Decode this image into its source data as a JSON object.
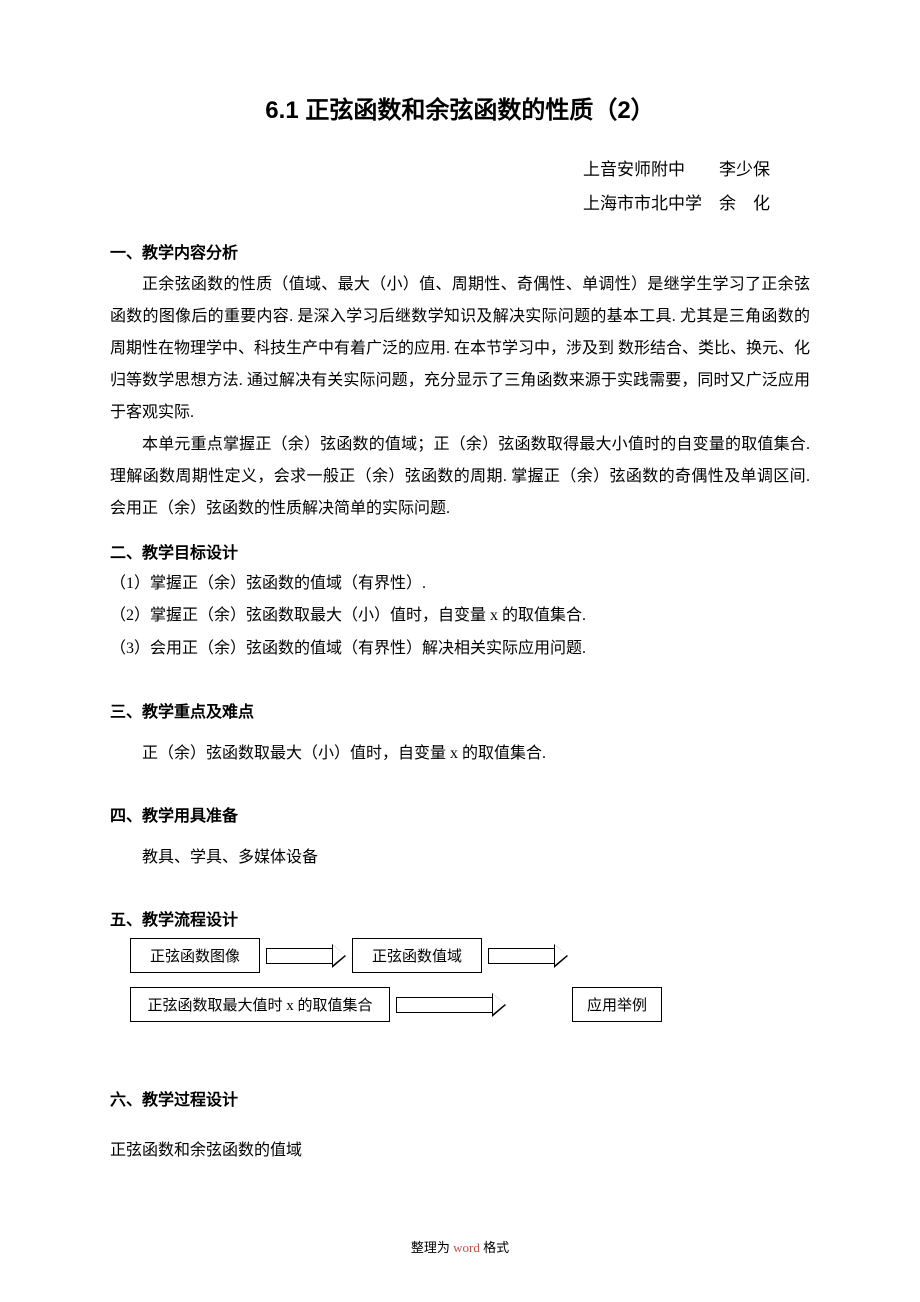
{
  "title": "6.1 正弦函数和余弦函数的性质（2）",
  "authors": {
    "line1": "上音安师附中　　李少保",
    "line2": "上海市市北中学　余　化"
  },
  "section1": {
    "head": "一、教学内容分析",
    "para1": "正余弦函数的性质（值域、最大（小）值、周期性、奇偶性、单调性）是继学生学习了正余弦函数的图像后的重要内容. 是深入学习后继数学知识及解决实际问题的基本工具. 尤其是三角函数的周期性在物理学中、科技生产中有着广泛的应用. 在本节学习中，涉及到 数形结合、类比、换元、化归等数学思想方法. 通过解决有关实际问题，充分显示了三角函数来源于实践需要，同时又广泛应用于客观实际.",
    "para2": "本单元重点掌握正（余）弦函数的值域；正（余）弦函数取得最大小值时的自变量的取值集合. 理解函数周期性定义，会求一般正（余）弦函数的周期. 掌握正（余）弦函数的奇偶性及单调区间. 会用正（余）弦函数的性质解决简单的实际问题."
  },
  "section2": {
    "head": "二、教学目标设计",
    "g1": "（1）掌握正（余）弦函数的值域（有界性）.",
    "g2": "（2）掌握正（余）弦函数取最大（小）值时，自变量 x 的取值集合.",
    "g3": "（3）会用正（余）弦函数的值域（有界性）解决相关实际应用问题."
  },
  "section3": {
    "head": "三、教学重点及难点",
    "para": "正（余）弦函数取最大（小）值时，自变量 x 的取值集合."
  },
  "section4": {
    "head": "四、教学用具准备",
    "para": "教具、学具、多媒体设备"
  },
  "section5": {
    "head": "五、教学流程设计",
    "flow": {
      "box1": "正弦函数图像",
      "box2": "正弦函数值域",
      "box3": "正弦函数取最大值时 x 的取值集合",
      "box4": "应用举例",
      "box1_w": 130,
      "box2_w": 130,
      "box3_w": 260,
      "box4_w": 90,
      "arrow1_w": 80,
      "arrow2_w": 80,
      "arrow3_w": 110,
      "gap_end": 60
    }
  },
  "section6": {
    "head": "六、教学过程设计",
    "sub": "正弦函数和余弦函数的值域"
  },
  "footer": {
    "prefix": "整理为",
    "word": " word ",
    "suffix": "格式"
  },
  "colors": {
    "text": "#000000",
    "accent": "#c0504d",
    "background": "#ffffff"
  }
}
